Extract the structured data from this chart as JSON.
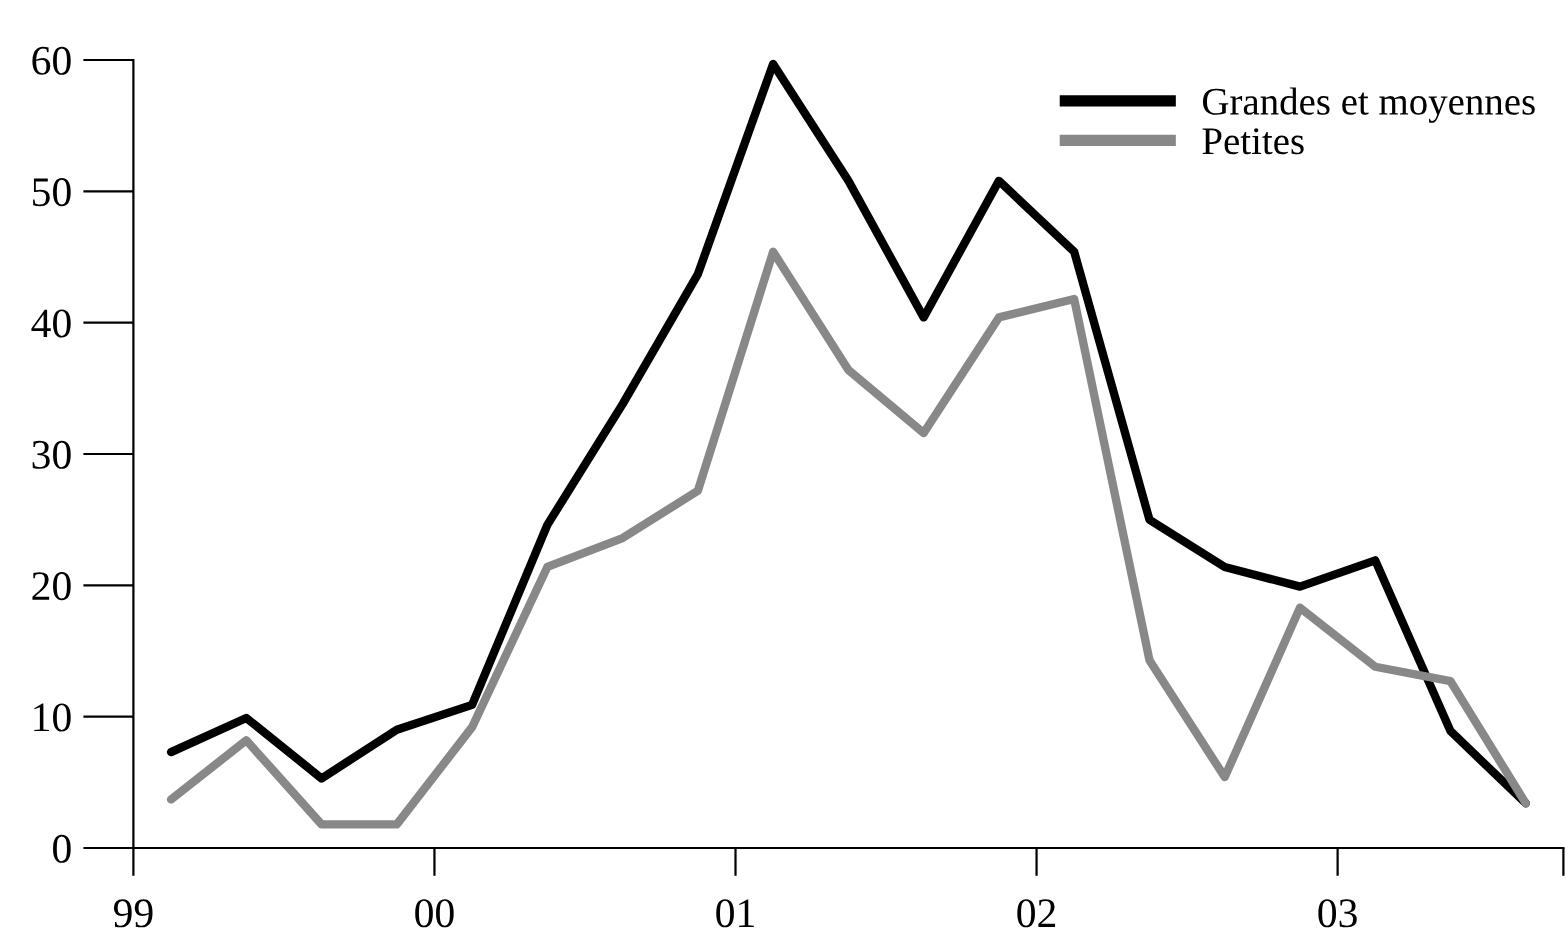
{
  "chart_data": {
    "type": "line",
    "x": [
      1999.125,
      1999.375,
      1999.625,
      1999.875,
      2000.125,
      2000.375,
      2000.625,
      2000.875,
      2001.125,
      2001.375,
      2001.625,
      2001.875,
      2002.125,
      2002.375,
      2002.625,
      2002.875,
      2003.125,
      2003.375,
      2003.625
    ],
    "series": [
      {
        "name": "Grandes et moyennes",
        "color": "#000000",
        "values": [
          7.3,
          9.9,
          5.3,
          9.0,
          10.9,
          24.6,
          33.8,
          43.7,
          59.7,
          50.8,
          40.4,
          50.8,
          45.4,
          25.0,
          21.4,
          19.9,
          21.9,
          8.9,
          3.4
        ]
      },
      {
        "name": "Petites",
        "color": "#888888",
        "values": [
          3.7,
          8.2,
          1.8,
          1.8,
          9.2,
          21.4,
          23.6,
          27.2,
          45.4,
          36.4,
          31.6,
          40.4,
          41.8,
          14.3,
          5.4,
          18.3,
          13.8,
          12.7,
          3.4
        ]
      }
    ],
    "xlim": [
      1999,
      2003.75
    ],
    "xticks": [
      {
        "value": 1999,
        "label": "99"
      },
      {
        "value": 2000,
        "label": "00"
      },
      {
        "value": 2001,
        "label": "01"
      },
      {
        "value": 2002,
        "label": "02"
      },
      {
        "value": 2003,
        "label": "03"
      },
      {
        "value": 2003.75,
        "label": null
      }
    ],
    "ylim": [
      0,
      60
    ],
    "yticks": [
      0,
      10,
      20,
      30,
      40,
      50,
      60
    ],
    "grid": false,
    "legend": "top right",
    "line_style": "solid"
  }
}
